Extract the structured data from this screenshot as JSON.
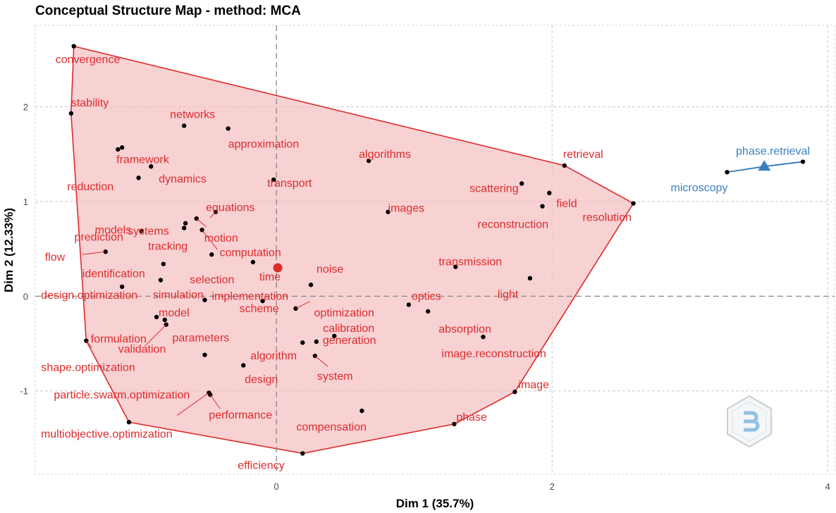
{
  "chart_data": {
    "type": "scatter",
    "title": "Conceptual Structure Map - method: MCA",
    "xlabel": "Dim 1 (35.7%)",
    "ylabel": "Dim 2 (12.33%)",
    "xlim": [
      -1.75,
      4.05
    ],
    "ylim": [
      -1.88,
      2.86
    ],
    "x_ticks": [
      0,
      2,
      4
    ],
    "y_ticks": [
      -1,
      0,
      1,
      2
    ],
    "grid": true,
    "legend": "none",
    "colors": {
      "cluster1": "#dd2c2c",
      "cluster1_fill": "#f5b9bc",
      "cluster2": "#3a7fbf",
      "point": "#000000"
    },
    "series": [
      {
        "cluster": "cluster1",
        "centroid": {
          "x": 0.01,
          "y": 0.3
        },
        "hull": [
          [
            -1.47,
            2.64
          ],
          [
            -1.49,
            1.93
          ],
          [
            -1.38,
            -0.47
          ],
          [
            -1.07,
            -1.33
          ],
          [
            0.19,
            -1.66
          ],
          [
            1.29,
            -1.35
          ],
          [
            1.73,
            -1.01
          ],
          [
            2.59,
            0.98
          ],
          [
            2.09,
            1.38
          ]
        ],
        "points": [
          {
            "label": "convergence",
            "x": -1.47,
            "y": 2.64
          },
          {
            "label": "stability",
            "x": -1.49,
            "y": 1.93
          },
          {
            "label": "networks",
            "x": -0.67,
            "y": 1.8
          },
          {
            "label": "approximation",
            "x": -0.35,
            "y": 1.77
          },
          {
            "label": "framework",
            "x": -1.12,
            "y": 1.57
          },
          {
            "label": "reduction",
            "x": -1.15,
            "y": 1.55
          },
          {
            "label": "dynamics",
            "x": -0.91,
            "y": 1.37
          },
          {
            "label": "models",
            "x": -1.0,
            "y": 1.25
          },
          {
            "label": "algorithms",
            "x": 0.67,
            "y": 1.43
          },
          {
            "label": "transport",
            "x": -0.02,
            "y": 1.23
          },
          {
            "label": "retrieval",
            "x": 2.09,
            "y": 1.38
          },
          {
            "label": "scattering",
            "x": 1.78,
            "y": 1.19
          },
          {
            "label": "field",
            "x": 1.98,
            "y": 1.09
          },
          {
            "label": "reconstruction",
            "x": 1.93,
            "y": 0.95
          },
          {
            "label": "resolution",
            "x": 2.59,
            "y": 0.98
          },
          {
            "label": "images",
            "x": 0.81,
            "y": 0.89
          },
          {
            "label": "equations",
            "x": -0.44,
            "y": 0.89
          },
          {
            "label": "systems",
            "x": -0.66,
            "y": 0.77
          },
          {
            "label": "motion",
            "x": -0.58,
            "y": 0.82
          },
          {
            "label": "tracking",
            "x": -0.67,
            "y": 0.72
          },
          {
            "label": "prediction",
            "x": -0.98,
            "y": 0.69
          },
          {
            "label": "computation",
            "x": -0.54,
            "y": 0.7
          },
          {
            "label": "flow",
            "x": -1.24,
            "y": 0.47
          },
          {
            "label": "selection",
            "x": -0.47,
            "y": 0.44
          },
          {
            "label": "time",
            "x": -0.17,
            "y": 0.36
          },
          {
            "label": "identification",
            "x": -0.82,
            "y": 0.34
          },
          {
            "label": "transmission",
            "x": 1.3,
            "y": 0.31
          },
          {
            "label": "noise",
            "x": 0.25,
            "y": 0.12
          },
          {
            "label": "light",
            "x": 1.84,
            "y": 0.19
          },
          {
            "label": "simulation",
            "x": -0.84,
            "y": 0.17
          },
          {
            "label": "implementation",
            "x": -0.52,
            "y": -0.04
          },
          {
            "label": "design.optimization",
            "x": -1.12,
            "y": 0.1
          },
          {
            "label": "optics",
            "x": 0.96,
            "y": -0.09
          },
          {
            "label": "optimization",
            "x": 0.14,
            "y": -0.13
          },
          {
            "label": "absorption",
            "x": 1.1,
            "y": -0.16
          },
          {
            "label": "model",
            "x": -0.87,
            "y": -0.22
          },
          {
            "label": "scheme",
            "x": -0.1,
            "y": -0.05
          },
          {
            "label": "formulation",
            "x": -0.81,
            "y": -0.25
          },
          {
            "label": "validation",
            "x": -0.8,
            "y": -0.3
          },
          {
            "label": "calibration",
            "x": 0.42,
            "y": -0.42
          },
          {
            "label": "image.reconstruction",
            "x": 1.5,
            "y": -0.43
          },
          {
            "label": "parameters",
            "x": -0.52,
            "y": -0.62
          },
          {
            "label": "algorithm",
            "x": 0.19,
            "y": -0.49
          },
          {
            "label": "generation",
            "x": 0.29,
            "y": -0.48
          },
          {
            "label": "system",
            "x": 0.28,
            "y": -0.63
          },
          {
            "label": "shape.optimization",
            "x": -1.38,
            "y": -0.47
          },
          {
            "label": "design",
            "x": -0.24,
            "y": -0.73
          },
          {
            "label": "particle.swarm.optimization",
            "x": -0.49,
            "y": -1.02
          },
          {
            "label": "performance",
            "x": -0.48,
            "y": -1.04
          },
          {
            "label": "image",
            "x": 1.73,
            "y": -1.01
          },
          {
            "label": "compensation",
            "x": 0.62,
            "y": -1.21
          },
          {
            "label": "phase",
            "x": 1.29,
            "y": -1.35
          },
          {
            "label": "multiobjective.optimization",
            "x": -1.07,
            "y": -1.33
          },
          {
            "label": "efficiency",
            "x": 0.19,
            "y": -1.66
          }
        ]
      },
      {
        "cluster": "cluster2",
        "centroid": {
          "x": 3.54,
          "y": 1.37
        },
        "points": [
          {
            "label": "phase.retrieval",
            "x": 3.82,
            "y": 1.42
          },
          {
            "label": "microscopy",
            "x": 3.27,
            "y": 1.31
          }
        ]
      }
    ]
  }
}
